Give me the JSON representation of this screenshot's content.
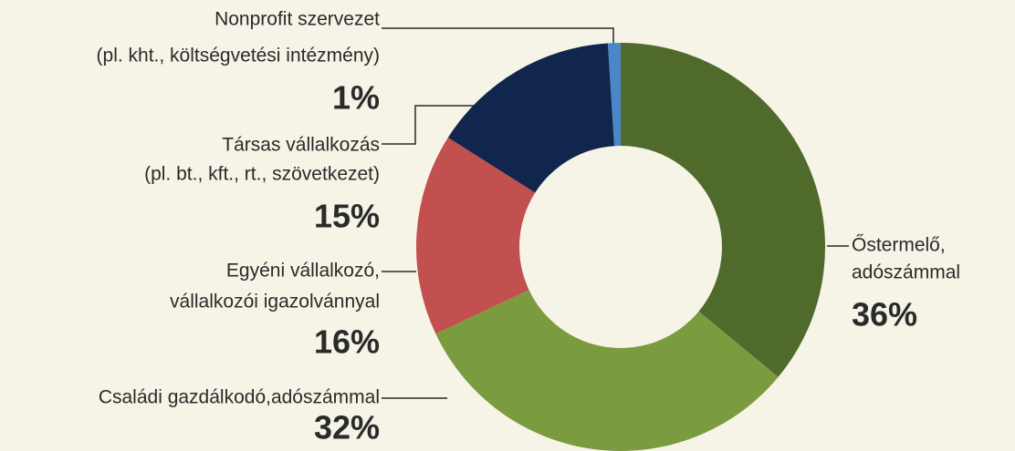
{
  "chart_data": {
    "type": "donut",
    "categories": [
      [
        "Őstermelő,",
        "adószámmal"
      ],
      [
        "Családi gazdálkodó,adószámmal"
      ],
      [
        "Egyéni vállalkozó,",
        "vállalkozói igazolvánnyal"
      ],
      [
        "Társas vállalkozás",
        "(pl. bt., kft., rt., szövetkezet)"
      ],
      [
        "Nonprofit szervezet",
        "(pl. kht., költségvetési intézmény)"
      ]
    ],
    "values": [
      36,
      32,
      16,
      15,
      1
    ],
    "value_labels": [
      "36%",
      "32%",
      "16%",
      "15%",
      "1%"
    ],
    "colors": [
      "#4f6a2b",
      "#7b9b3f",
      "#c1504e",
      "#10264c",
      "#4a86c8"
    ]
  }
}
